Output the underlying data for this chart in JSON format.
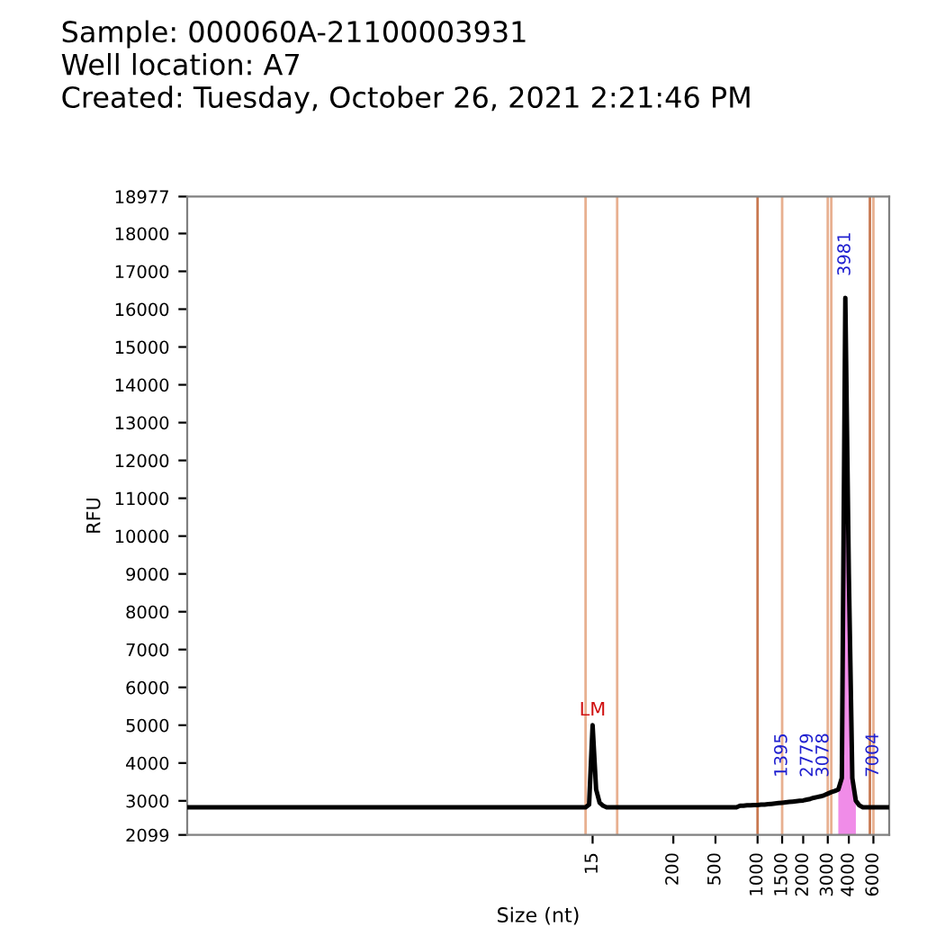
{
  "chart_data": {
    "type": "line",
    "title": "Sample: 000060A-21100003931",
    "subtitle": "Well location: A7",
    "xlabel": "Size (nt)",
    "ylabel": "RFU",
    "annotations": [
      "Created: Tuesday, October 26, 2021 2:21:46 PM",
      "LM",
      "1395",
      "2779",
      "3078",
      "3981",
      "7004"
    ],
    "categories": [
      null,
      null,
      null,
      null,
      null,
      null,
      null,
      null,
      null,
      null,
      null,
      null,
      null,
      null,
      null,
      null,
      null,
      null,
      null,
      null,
      null,
      null,
      null,
      null,
      null,
      null,
      null,
      null,
      null,
      null,
      null,
      null,
      null,
      null,
      null,
      null,
      null,
      null,
      null,
      null,
      null,
      null,
      null,
      null,
      null,
      null,
      null,
      null,
      null,
      null,
      null,
      null,
      null,
      null,
      null,
      null,
      null,
      null,
      null,
      null,
      null,
      null,
      null,
      null,
      null,
      null,
      null,
      null,
      null,
      null,
      null,
      null,
      null,
      null,
      null,
      null,
      null,
      null,
      null,
      null,
      null,
      null,
      null,
      null,
      null,
      null,
      null,
      null,
      null,
      null,
      null,
      null,
      null,
      null,
      null,
      null,
      null,
      null,
      null,
      null,
      null,
      null,
      null,
      null,
      null,
      null,
      null,
      null,
      null,
      null,
      null,
      null,
      null,
      null,
      null,
      "15",
      null,
      null,
      null,
      null,
      null,
      null,
      null,
      null,
      null,
      null,
      null,
      null,
      null,
      null,
      null,
      null,
      null,
      null,
      null,
      null,
      null,
      null,
      "200",
      null,
      null,
      null,
      null,
      null,
      null,
      null,
      null,
      null,
      null,
      null,
      "500",
      null,
      null,
      null,
      null,
      null,
      null,
      null,
      null,
      null,
      null,
      null,
      "1000",
      null,
      null,
      null,
      null,
      null,
      null,
      "1500",
      null,
      null,
      null,
      null,
      null,
      "2000",
      null,
      null,
      null,
      null,
      null,
      null,
      "3000",
      null,
      null,
      null,
      null,
      null,
      "4000",
      null,
      null,
      null,
      null,
      null,
      null,
      "6000",
      null,
      null,
      null,
      null
    ],
    "ylim": [
      2099,
      18977
    ],
    "yticks": [
      2099,
      3000,
      4000,
      5000,
      6000,
      7000,
      8000,
      9000,
      10000,
      11000,
      12000,
      13000,
      14000,
      15000,
      16000,
      17000,
      18000,
      18977
    ],
    "series": [
      {
        "type": "area",
        "color": "#f08ce8",
        "values": [
          null,
          null,
          null,
          null,
          null,
          null,
          null,
          null,
          null,
          null,
          null,
          null,
          null,
          null,
          null,
          null,
          null,
          null,
          null,
          null,
          null,
          null,
          null,
          null,
          null,
          null,
          null,
          null,
          null,
          null,
          null,
          null,
          null,
          null,
          null,
          null,
          null,
          null,
          null,
          null,
          null,
          null,
          null,
          null,
          null,
          null,
          null,
          null,
          null,
          null,
          null,
          null,
          null,
          null,
          null,
          null,
          null,
          null,
          null,
          null,
          null,
          null,
          null,
          null,
          null,
          null,
          null,
          null,
          null,
          null,
          null,
          null,
          null,
          null,
          null,
          null,
          null,
          null,
          null,
          null,
          null,
          null,
          null,
          null,
          null,
          null,
          null,
          null,
          null,
          null,
          null,
          null,
          null,
          null,
          null,
          null,
          null,
          null,
          null,
          null,
          null,
          null,
          null,
          null,
          null,
          null,
          null,
          null,
          null,
          null,
          null,
          null,
          null,
          null,
          null,
          null,
          null,
          null,
          null,
          null,
          null,
          null,
          null,
          null,
          null,
          null,
          null,
          null,
          null,
          null,
          null,
          null,
          null,
          null,
          null,
          null,
          null,
          null,
          null,
          null,
          null,
          null,
          null,
          null,
          null,
          null,
          null,
          null,
          null,
          null,
          null,
          null,
          null,
          null,
          null,
          null,
          null,
          null,
          null,
          null,
          null,
          null,
          null,
          null,
          null,
          null,
          null,
          null,
          null,
          null,
          null,
          null,
          null,
          null,
          null,
          null,
          null,
          null,
          null,
          null,
          null,
          null,
          null,
          null,
          null,
          3300,
          3600,
          16300,
          9000,
          3600,
          3000,
          null,
          null,
          null,
          null,
          null,
          null,
          null,
          null,
          null
        ]
      },
      {
        "color": "#000000",
        "values": [
          2830,
          2830,
          2830,
          2830,
          2830,
          2830,
          2830,
          2830,
          2830,
          2830,
          2830,
          2830,
          2830,
          2830,
          2830,
          2830,
          2830,
          2830,
          2830,
          2830,
          2830,
          2830,
          2830,
          2830,
          2830,
          2830,
          2830,
          2830,
          2830,
          2830,
          2830,
          2830,
          2830,
          2830,
          2830,
          2830,
          2830,
          2830,
          2830,
          2830,
          2830,
          2830,
          2830,
          2830,
          2830,
          2830,
          2830,
          2830,
          2830,
          2830,
          2830,
          2830,
          2830,
          2830,
          2830,
          2830,
          2830,
          2830,
          2830,
          2830,
          2830,
          2830,
          2830,
          2830,
          2830,
          2830,
          2830,
          2830,
          2830,
          2830,
          2830,
          2830,
          2830,
          2830,
          2830,
          2830,
          2830,
          2830,
          2830,
          2830,
          2830,
          2830,
          2830,
          2830,
          2830,
          2830,
          2830,
          2830,
          2830,
          2830,
          2830,
          2830,
          2830,
          2830,
          2830,
          2830,
          2830,
          2830,
          2830,
          2830,
          2830,
          2830,
          2830,
          2830,
          2830,
          2830,
          2830,
          2830,
          2830,
          2830,
          2830,
          2830,
          2830,
          2830,
          2900,
          5000,
          3300,
          2950,
          2870,
          2830,
          2830,
          2830,
          2830,
          2830,
          2830,
          2830,
          2830,
          2830,
          2830,
          2830,
          2830,
          2830,
          2830,
          2830,
          2830,
          2830,
          2830,
          2830,
          2830,
          2830,
          2830,
          2830,
          2830,
          2830,
          2830,
          2830,
          2830,
          2830,
          2830,
          2830,
          2830,
          2830,
          2830,
          2830,
          2830,
          2830,
          2830,
          2870,
          2870,
          2880,
          2880,
          2890,
          2890,
          2900,
          2900,
          2910,
          2920,
          2930,
          2940,
          2950,
          2960,
          2970,
          2980,
          2990,
          3000,
          3010,
          3030,
          3050,
          3080,
          3100,
          3120,
          3150,
          3190,
          3230,
          3260,
          3300,
          3600,
          16300,
          9000,
          3600,
          3000,
          2880,
          2830,
          2830,
          2830,
          2830,
          2830,
          2830,
          2830,
          2830
        ],
        "value_labels": [
          null,
          null,
          null,
          null,
          null,
          null,
          null,
          null,
          null,
          null,
          null,
          null,
          null,
          null,
          null,
          null,
          null,
          null,
          null,
          null,
          null,
          null,
          null,
          null,
          null,
          null,
          null,
          null,
          null,
          null,
          null,
          null,
          null,
          null,
          null,
          null,
          null,
          null,
          null,
          null,
          null,
          null,
          null,
          null,
          null,
          null,
          null,
          null,
          null,
          null,
          null,
          null,
          null,
          null,
          null,
          null,
          null,
          null,
          null,
          null,
          null,
          null,
          null,
          null,
          null,
          null,
          null,
          null,
          null,
          null,
          null,
          null,
          null,
          null,
          null,
          null,
          null,
          null,
          null,
          null,
          null,
          null,
          null,
          null,
          null,
          null,
          null,
          null,
          null,
          null,
          null,
          null,
          null,
          null,
          null,
          null,
          null,
          null,
          null,
          null,
          null,
          null,
          null,
          null,
          null,
          null,
          null,
          null,
          null,
          null,
          null,
          null,
          null,
          null,
          null,
          null,
          null,
          null,
          null,
          null,
          null,
          null,
          null,
          null,
          null,
          null,
          null,
          null,
          null,
          null,
          null,
          null,
          null,
          null,
          null,
          null,
          null,
          null,
          null,
          null,
          null,
          null,
          null,
          null,
          null,
          null,
          null,
          null,
          null,
          null,
          null,
          null,
          null,
          null,
          null,
          null,
          null,
          null,
          null,
          null,
          null,
          null,
          null,
          null,
          null,
          null,
          null,
          null,
          null,
          null,
          null,
          null,
          null,
          null,
          null,
          null,
          null,
          null,
          null,
          null,
          null,
          null,
          null,
          null,
          null,
          null,
          null,
          null,
          null,
          null,
          null,
          null,
          null,
          null,
          null,
          null,
          null,
          null,
          null,
          null
        ]
      }
    ],
    "grid": false
  }
}
